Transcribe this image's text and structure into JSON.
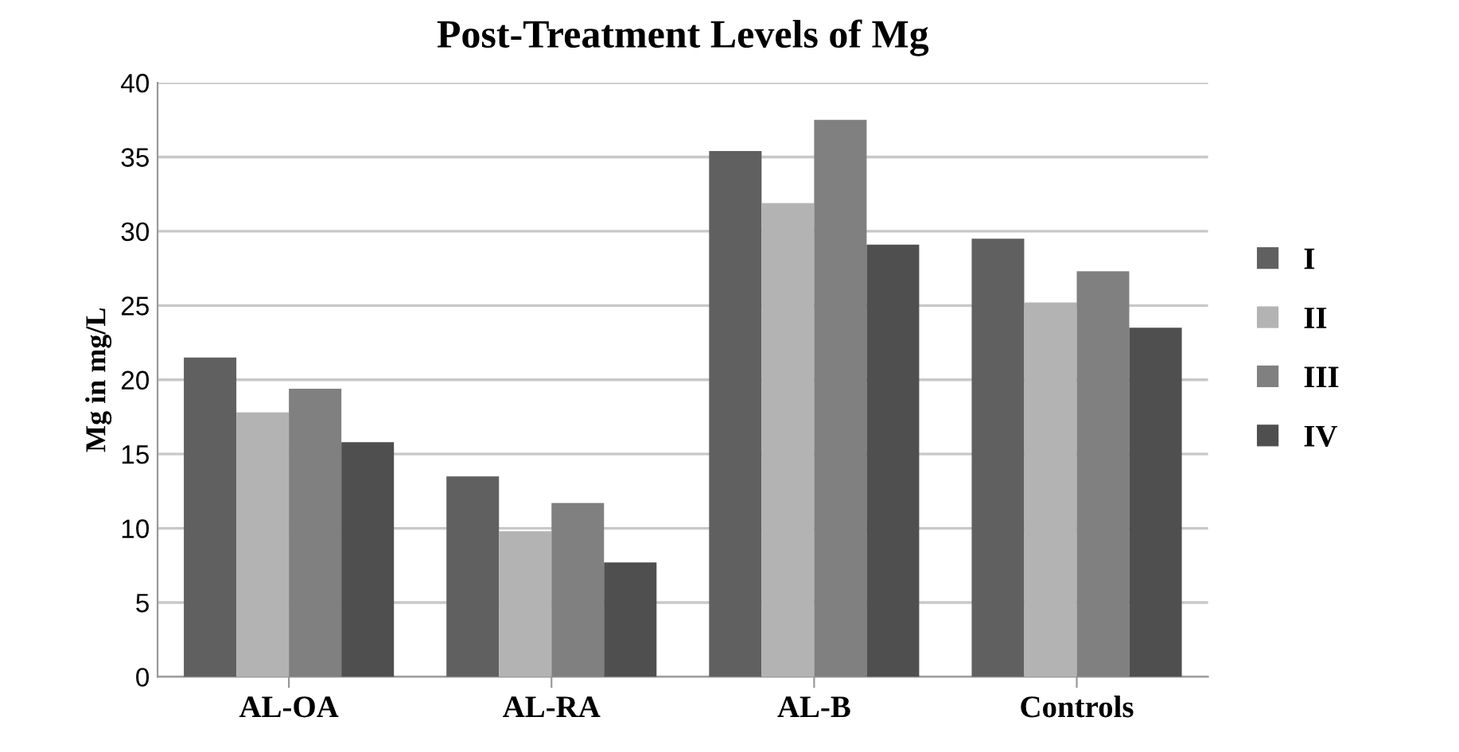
{
  "chart_data": {
    "type": "bar",
    "title": "Post-Treatment Levels of Mg",
    "ylabel": "Mg in mg/L",
    "categories": [
      "AL-OA",
      "AL-RA",
      "AL-B",
      "Controls"
    ],
    "series": [
      {
        "name": "I",
        "color": "#606060",
        "values": [
          21.5,
          13.5,
          35.4,
          29.5
        ]
      },
      {
        "name": "II",
        "color": "#b3b3b3",
        "values": [
          17.8,
          9.8,
          31.9,
          25.2
        ]
      },
      {
        "name": "III",
        "color": "#808080",
        "values": [
          19.4,
          11.7,
          37.5,
          27.3
        ]
      },
      {
        "name": "IV",
        "color": "#4f4f4f",
        "values": [
          15.8,
          7.7,
          29.1,
          23.5
        ]
      }
    ],
    "ylim": [
      0,
      40
    ],
    "yticks": [
      0,
      5,
      10,
      15,
      20,
      25,
      30,
      35,
      40
    ],
    "grid": "y",
    "legend": "right"
  }
}
